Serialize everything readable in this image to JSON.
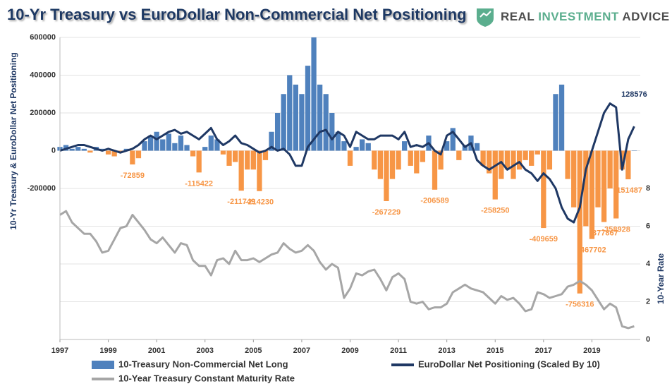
{
  "logo": [
    "REAL",
    "INVESTMENT",
    "ADVICE"
  ],
  "chart_data": {
    "type": "combo",
    "title": "10-Yr Treasury vs EuroDollar Non-Commercial Net Positioning",
    "y_label": "10-Yr Treasury & EuroDollar Net Positioning",
    "y2_label": "10-Year Rate",
    "x": [
      1997,
      1997.25,
      1997.5,
      1997.75,
      1998,
      1998.25,
      1998.5,
      1998.75,
      1999,
      1999.25,
      1999.5,
      1999.75,
      2000,
      2000.25,
      2000.5,
      2000.75,
      2001,
      2001.25,
      2001.5,
      2001.75,
      2002,
      2002.25,
      2002.5,
      2002.75,
      2003,
      2003.25,
      2003.5,
      2003.75,
      2004,
      2004.25,
      2004.5,
      2004.75,
      2005,
      2005.25,
      2005.5,
      2005.75,
      2006,
      2006.25,
      2006.5,
      2006.75,
      2007,
      2007.25,
      2007.5,
      2007.75,
      2008,
      2008.25,
      2008.5,
      2008.75,
      2009,
      2009.25,
      2009.5,
      2009.75,
      2010,
      2010.25,
      2010.5,
      2010.75,
      2011,
      2011.25,
      2011.5,
      2011.75,
      2012,
      2012.25,
      2012.5,
      2012.75,
      2013,
      2013.25,
      2013.5,
      2013.75,
      2014,
      2014.25,
      2014.5,
      2014.75,
      2015,
      2015.25,
      2015.5,
      2015.75,
      2016,
      2016.25,
      2016.5,
      2016.75,
      2017,
      2017.25,
      2017.5,
      2017.75,
      2018,
      2018.25,
      2018.5,
      2018.75,
      2019,
      2019.25,
      2019.5,
      2019.75,
      2020,
      2020.25,
      2020.5,
      2020.75
    ],
    "xlim": [
      1997,
      2021
    ],
    "xticks": [
      1997,
      1999,
      2001,
      2003,
      2005,
      2007,
      2009,
      2011,
      2013,
      2015,
      2017,
      2019
    ],
    "ylim": [
      -1000000,
      600000
    ],
    "yticks": [
      -200000,
      0,
      200000,
      400000,
      600000
    ],
    "y2lim": [
      0,
      16
    ],
    "y2ticks": [
      0,
      2,
      4,
      6,
      8
    ],
    "grid": true,
    "legend": "bottom",
    "series": [
      {
        "name": "10-Treasury Non-Commercial Net Long",
        "type": "bar",
        "color": "#4f81bd",
        "negative_color": "#f79646",
        "values": [
          20000,
          30000,
          10000,
          20000,
          10000,
          -10000,
          20000,
          10000,
          -20000,
          -30000,
          -10000,
          10000,
          -72859,
          -40000,
          50000,
          80000,
          100000,
          60000,
          90000,
          40000,
          80000,
          30000,
          -30000,
          -115422,
          20000,
          80000,
          60000,
          -20000,
          -80000,
          -60000,
          -211749,
          -100000,
          -100000,
          -214230,
          -50000,
          100000,
          200000,
          300000,
          400000,
          350000,
          300000,
          450000,
          600000,
          350000,
          300000,
          200000,
          100000,
          50000,
          -80000,
          20000,
          60000,
          40000,
          -100000,
          -150000,
          -267229,
          -150000,
          -100000,
          50000,
          -80000,
          -120000,
          -60000,
          80000,
          -206589,
          -100000,
          50000,
          120000,
          -50000,
          30000,
          80000,
          40000,
          -80000,
          -120000,
          -258250,
          -150000,
          -100000,
          -150000,
          -100000,
          -50000,
          -80000,
          -20000,
          -409659,
          -100000,
          300000,
          350000,
          -150000,
          -300000,
          -756316,
          -400000,
          -467702,
          -300000,
          -377867,
          -200000,
          -358928,
          -100000,
          -151487,
          0
        ]
      },
      {
        "name": "EuroDollar Net Positioning (Scaled By 10)",
        "type": "line",
        "color": "#1f3864",
        "values": [
          0,
          10000,
          20000,
          30000,
          30000,
          20000,
          10000,
          0,
          10000,
          0,
          -10000,
          0,
          10000,
          30000,
          60000,
          80000,
          60000,
          80000,
          100000,
          110000,
          90000,
          100000,
          80000,
          60000,
          90000,
          120000,
          60000,
          30000,
          50000,
          80000,
          40000,
          30000,
          10000,
          -10000,
          0,
          20000,
          0,
          10000,
          -20000,
          -80000,
          -80000,
          20000,
          60000,
          100000,
          110000,
          60000,
          100000,
          80000,
          20000,
          100000,
          80000,
          60000,
          60000,
          80000,
          80000,
          80000,
          60000,
          100000,
          20000,
          30000,
          20000,
          40000,
          0,
          -20000,
          80000,
          100000,
          60000,
          20000,
          40000,
          -50000,
          -80000,
          -100000,
          -80000,
          -60000,
          -100000,
          -80000,
          -60000,
          -100000,
          -120000,
          -160000,
          -120000,
          -150000,
          -200000,
          -300000,
          -360000,
          -380000,
          -300000,
          -100000,
          0,
          100000,
          200000,
          250000,
          230000,
          -100000,
          60000,
          128576
        ]
      },
      {
        "name": "10-Year Treasury Constant Maturity Rate",
        "type": "line",
        "axis": "y2",
        "color": "#a6a6a6",
        "values": [
          6.6,
          6.8,
          6.2,
          5.9,
          5.6,
          5.6,
          5.2,
          4.6,
          4.7,
          5.3,
          5.9,
          6.0,
          6.6,
          6.2,
          5.8,
          5.3,
          5.1,
          5.4,
          5.0,
          4.6,
          5.1,
          5.0,
          4.2,
          3.9,
          3.9,
          3.4,
          4.2,
          4.3,
          4.0,
          4.7,
          4.2,
          4.2,
          4.3,
          4.1,
          4.3,
          4.5,
          4.6,
          5.1,
          4.8,
          4.6,
          4.7,
          5.0,
          4.7,
          4.1,
          3.7,
          4.0,
          3.8,
          2.2,
          2.7,
          3.5,
          3.4,
          3.6,
          3.7,
          3.2,
          2.6,
          3.3,
          3.5,
          3.2,
          2.0,
          1.9,
          2.0,
          1.6,
          1.7,
          1.7,
          1.9,
          2.5,
          2.7,
          2.9,
          2.7,
          2.6,
          2.5,
          2.2,
          1.9,
          2.3,
          2.1,
          2.2,
          1.9,
          1.5,
          1.6,
          2.5,
          2.4,
          2.2,
          2.3,
          2.4,
          2.8,
          2.9,
          3.1,
          2.9,
          2.6,
          2.1,
          1.6,
          1.9,
          1.7,
          0.7,
          0.6,
          0.7
        ]
      }
    ],
    "annotations": [
      {
        "x": 2000,
        "value": -72859
      },
      {
        "x": 2002.75,
        "value": -115422
      },
      {
        "x": 2004.5,
        "value": -211749
      },
      {
        "x": 2005.25,
        "value": -214230
      },
      {
        "x": 2010.5,
        "value": -267229
      },
      {
        "x": 2012.5,
        "value": -206589
      },
      {
        "x": 2015,
        "value": -258250
      },
      {
        "x": 2017,
        "value": -409659
      },
      {
        "x": 2018.5,
        "value": -756316
      },
      {
        "x": 2019,
        "value": -467702
      },
      {
        "x": 2019.5,
        "value": -377867
      },
      {
        "x": 2020,
        "value": -358928
      },
      {
        "x": 2020.5,
        "value": -151487
      },
      {
        "x": 2020.75,
        "value": 128576
      }
    ]
  }
}
